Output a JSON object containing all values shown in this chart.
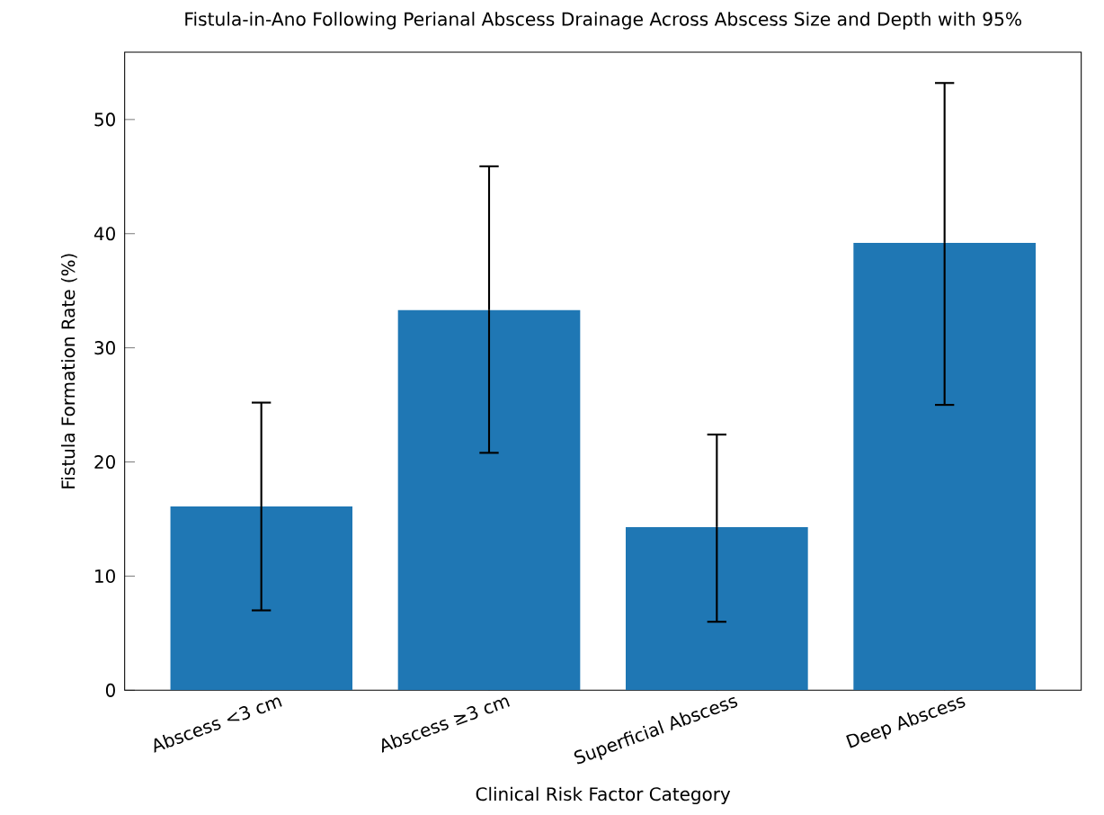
{
  "chart_data": {
    "type": "bar",
    "title": "Fistula-in-Ano Following Perianal Abscess Drainage Across Abscess Size and Depth with 95%",
    "xlabel": "Clinical Risk Factor Category",
    "ylabel": "Fistula Formation Rate (%)",
    "categories": [
      "Abscess <3 cm",
      "Abscess ≥3 cm",
      "Superficial Abscess",
      "Deep Abscess"
    ],
    "values": [
      16.1,
      33.3,
      14.3,
      39.2
    ],
    "errors": [
      [
        7.0,
        25.2
      ],
      [
        20.8,
        45.9
      ],
      [
        6.0,
        22.4
      ],
      [
        25.0,
        53.2
      ]
    ],
    "color": "#1f77b4",
    "ylim": [
      0,
      55.9
    ],
    "yticks": [
      0,
      10,
      20,
      30,
      40,
      50
    ]
  }
}
